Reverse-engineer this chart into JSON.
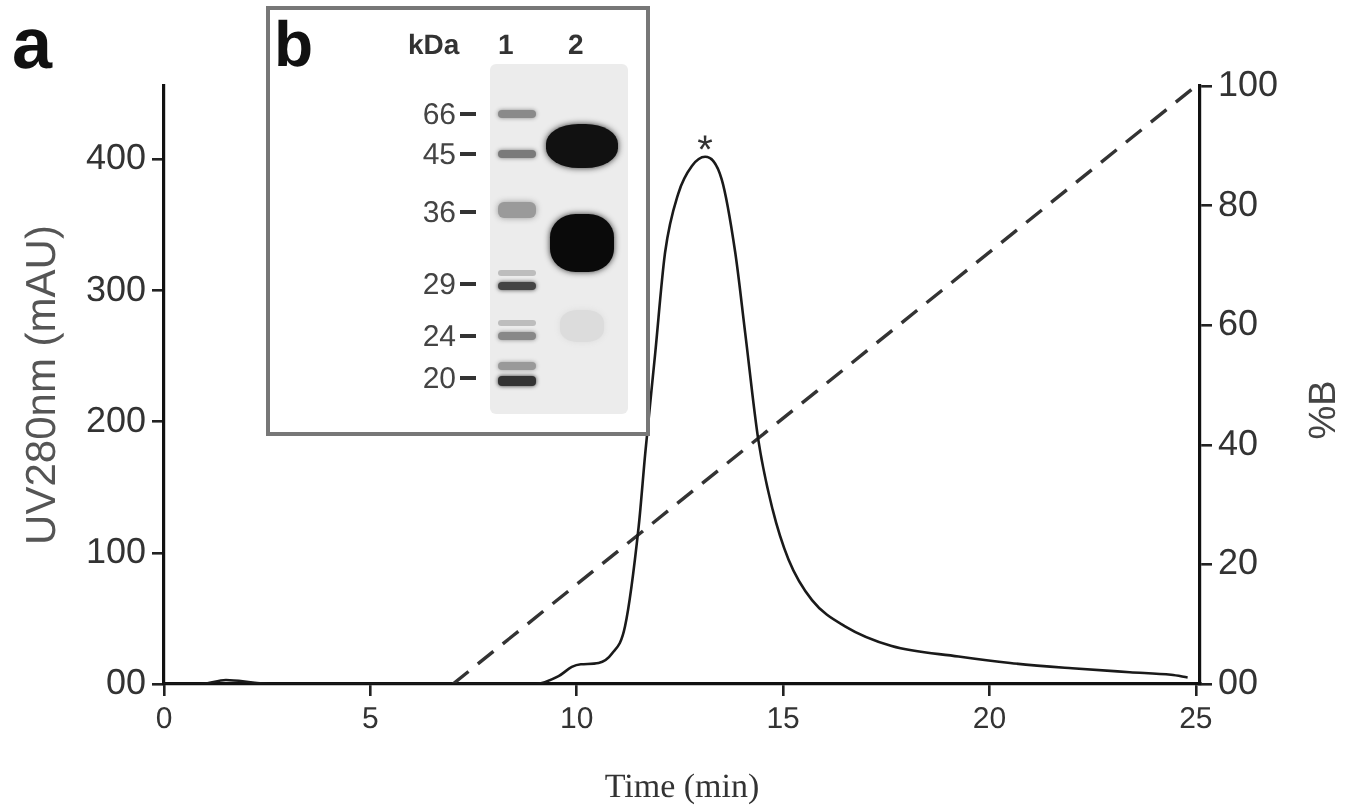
{
  "chart_data": {
    "type": "line",
    "xlabel": "Time (min)",
    "ylabel": "UV280nm (mAU)",
    "y2label": "%B",
    "xlim": [
      0,
      25.1
    ],
    "xticks": [
      0,
      5,
      10,
      15,
      20,
      25
    ],
    "ylim": [
      0,
      456
    ],
    "yticks": [
      {
        "value": 0,
        "label": "00"
      },
      100,
      200,
      300,
      400
    ],
    "y2lim": [
      0,
      100
    ],
    "y2ticks": [
      {
        "value": 0,
        "label": "00"
      },
      20,
      40,
      60,
      80,
      100
    ],
    "series": [
      {
        "color": "#1a1a1a",
        "x": [
          0,
          0.9,
          1.5,
          2.2,
          2.6,
          9.0,
          9.56,
          9.88,
          10.1,
          10.53,
          10.85,
          11.17,
          11.5,
          11.66,
          11.9,
          12.14,
          12.46,
          12.79,
          13.11,
          13.51,
          13.84,
          14.08,
          14.4,
          14.73,
          15.13,
          15.7,
          16.5,
          17.63,
          19.25,
          20.5,
          22.0,
          23.4,
          24.4,
          24.8
        ],
        "values": [
          0,
          0,
          3,
          1,
          0,
          0,
          6,
          13,
          15,
          16,
          23,
          44,
          120,
          176,
          252,
          329,
          374,
          395,
          402,
          385,
          329,
          268,
          186,
          135,
          95,
          64,
          44,
          29,
          21,
          16,
          12,
          9,
          7,
          5
        ]
      },
      {
        "color": "#333333",
        "axis": "y2",
        "line_style": "dashed",
        "x": [
          7,
          25
        ],
        "values": [
          0,
          100
        ]
      }
    ],
    "line_style": "solid",
    "marker": "none",
    "grid": false,
    "legend": false,
    "annotations": [
      "a",
      "b",
      "kDa",
      "1",
      "2",
      "66",
      "45",
      "36",
      "29",
      "24",
      "20",
      {
        "text": "*",
        "x": 13.11,
        "y": 402
      }
    ]
  }
}
